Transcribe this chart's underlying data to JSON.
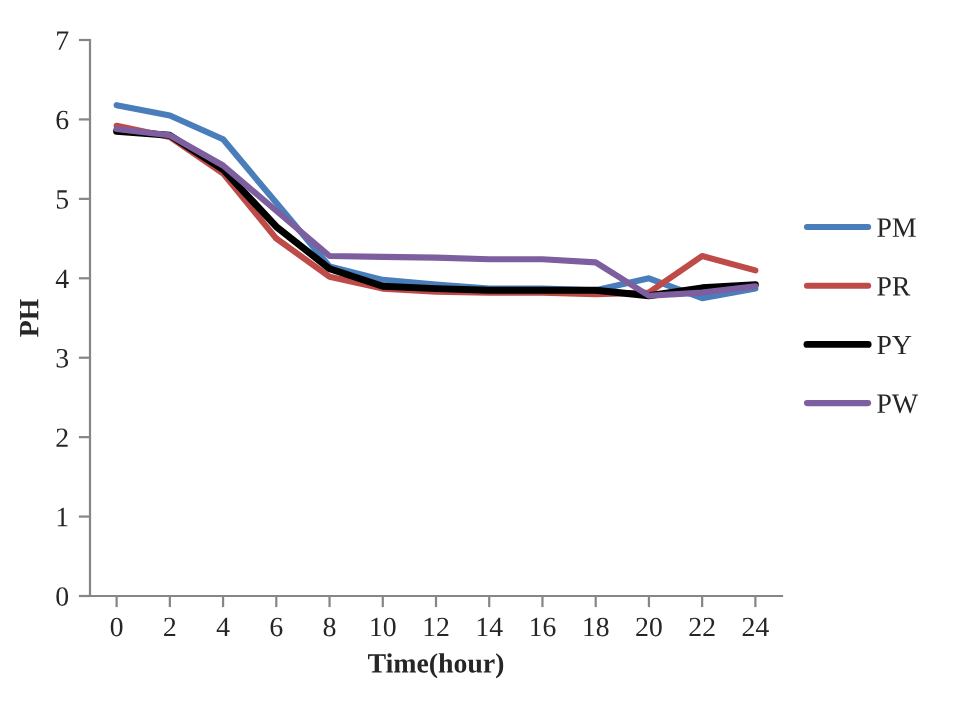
{
  "chart_data": {
    "type": "line",
    "xlabel": "Time(hour)",
    "ylabel": "PH",
    "categories": [
      "0",
      "2",
      "4",
      "6",
      "8",
      "10",
      "12",
      "14",
      "16",
      "18",
      "20",
      "22",
      "24"
    ],
    "series": [
      {
        "name": "PM",
        "color": "#4a7ebb",
        "values": [
          6.18,
          6.05,
          5.75,
          4.95,
          4.15,
          3.98,
          3.92,
          3.87,
          3.87,
          3.85,
          4.0,
          3.75,
          3.87
        ]
      },
      {
        "name": "PR",
        "color": "#be4b48",
        "values": [
          5.92,
          5.78,
          5.32,
          4.5,
          4.02,
          3.87,
          3.83,
          3.82,
          3.82,
          3.8,
          3.82,
          4.28,
          4.1
        ]
      },
      {
        "name": "PY",
        "color": "#000000",
        "values": [
          5.85,
          5.8,
          5.37,
          4.65,
          4.12,
          3.9,
          3.87,
          3.85,
          3.85,
          3.85,
          3.78,
          3.88,
          3.92
        ]
      },
      {
        "name": "PW",
        "color": "#7d5fa0",
        "values": [
          5.88,
          5.8,
          5.42,
          4.85,
          4.28,
          4.27,
          4.26,
          4.24,
          4.24,
          4.2,
          3.78,
          3.82,
          3.9
        ]
      }
    ],
    "ylim": [
      0,
      7
    ],
    "yticks": [
      0,
      1,
      2,
      3,
      4,
      5,
      6,
      7
    ],
    "grid": false,
    "legend": "right",
    "marker": "none",
    "line_style": "solid"
  }
}
